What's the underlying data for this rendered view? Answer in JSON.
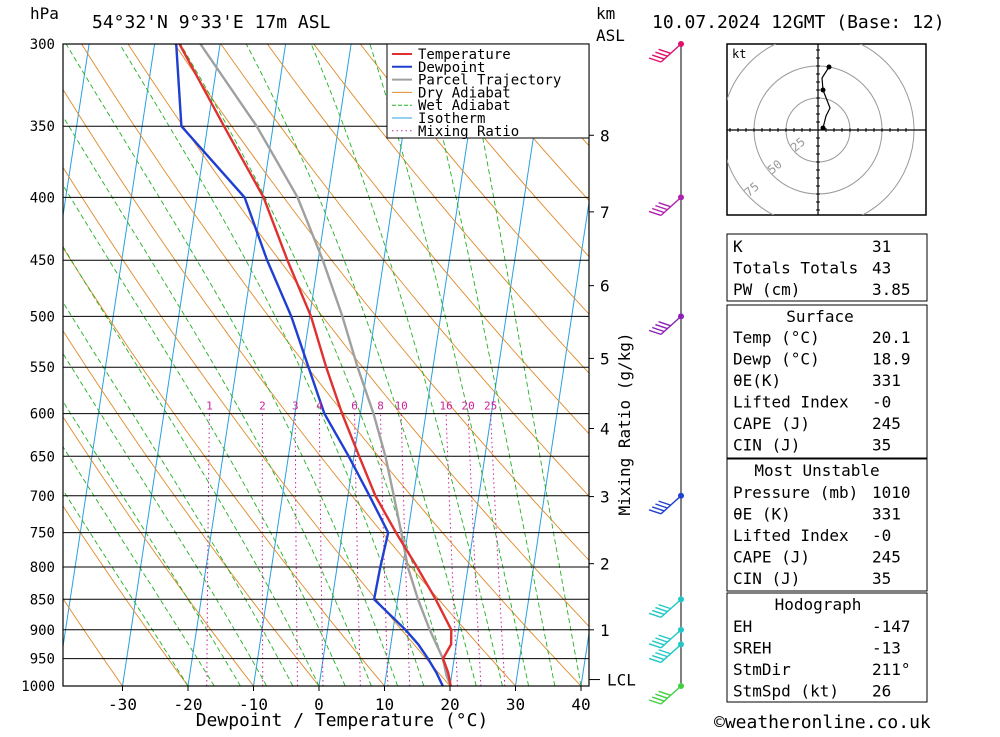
{
  "header": {
    "location": "54°32'N  9°33'E  17m  ASL",
    "pressure_unit": "hPa",
    "km_label": "km",
    "asl_label": "ASL",
    "datetime": "10.07.2024  12GMT  (Base: 12)"
  },
  "chart_data": {
    "type": "line",
    "xlabel": "Dewpoint / Temperature (°C)",
    "ylabel": "Mixing Ratio (g/kg)",
    "x_ticks": [
      -30,
      -20,
      -10,
      0,
      10,
      20,
      30,
      40
    ],
    "pressure_levels": [
      300,
      350,
      400,
      450,
      500,
      550,
      600,
      650,
      700,
      750,
      800,
      850,
      900,
      950,
      1000
    ],
    "km_ticks": [
      1,
      2,
      3,
      4,
      5,
      6,
      7,
      8
    ],
    "lcl_label": "LCL",
    "mixing_ratio_labels": [
      "1",
      "2",
      "3",
      "4",
      "6",
      "8",
      "10",
      "16",
      "20",
      "25"
    ],
    "legend": [
      {
        "name": "Temperature",
        "color": "#e03030"
      },
      {
        "name": "Dewpoint",
        "color": "#1f3fd0"
      },
      {
        "name": "Parcel Trajectory",
        "color": "#a0a0a0"
      },
      {
        "name": "Dry Adiabat",
        "color": "#e08a2a"
      },
      {
        "name": "Wet Adiabat",
        "color": "#22b022"
      },
      {
        "name": "Isotherm",
        "color": "#2aa0e0"
      },
      {
        "name": "Mixing Ratio",
        "color": "#cc2299"
      }
    ],
    "series": [
      {
        "name": "Temperature",
        "points": [
          [
            1000,
            20.1
          ],
          [
            975,
            19.4
          ],
          [
            950,
            18.3
          ],
          [
            925,
            19.2
          ],
          [
            900,
            18.9
          ],
          [
            850,
            15.8
          ],
          [
            800,
            12.2
          ],
          [
            750,
            8.2
          ],
          [
            700,
            4.2
          ],
          [
            650,
            0.8
          ],
          [
            600,
            -2.8
          ],
          [
            550,
            -6.3
          ],
          [
            500,
            -9.8
          ],
          [
            450,
            -14.7
          ],
          [
            400,
            -19.8
          ],
          [
            350,
            -27.5
          ],
          [
            300,
            -36.2
          ]
        ]
      },
      {
        "name": "Dewpoint",
        "points": [
          [
            1000,
            18.9
          ],
          [
            975,
            17.6
          ],
          [
            950,
            16.0
          ],
          [
            925,
            14.2
          ],
          [
            900,
            11.9
          ],
          [
            850,
            6.4
          ],
          [
            800,
            6.6
          ],
          [
            750,
            7.0
          ],
          [
            700,
            3.3
          ],
          [
            650,
            -0.8
          ],
          [
            600,
            -5.5
          ],
          [
            550,
            -9.0
          ],
          [
            500,
            -12.8
          ],
          [
            450,
            -17.8
          ],
          [
            400,
            -22.7
          ],
          [
            350,
            -34.0
          ],
          [
            300,
            -36.7
          ]
        ]
      },
      {
        "name": "Parcel Trajectory",
        "points": [
          [
            1000,
            20.1
          ],
          [
            980,
            19.2
          ],
          [
            950,
            18.3
          ],
          [
            900,
            15.6
          ],
          [
            850,
            13.1
          ],
          [
            800,
            10.8
          ],
          [
            750,
            9.0
          ],
          [
            700,
            7.0
          ],
          [
            650,
            4.8
          ],
          [
            600,
            2.0
          ],
          [
            550,
            -1.5
          ],
          [
            500,
            -5.0
          ],
          [
            450,
            -9.3
          ],
          [
            400,
            -14.6
          ],
          [
            350,
            -22.5
          ],
          [
            300,
            -33.0
          ]
        ]
      }
    ],
    "wind_barbs": [
      {
        "p": 300,
        "color": "#e0106e"
      },
      {
        "p": 400,
        "color": "#b020b0"
      },
      {
        "p": 500,
        "color": "#8a20b8"
      },
      {
        "p": 700,
        "color": "#2040d0"
      },
      {
        "p": 850,
        "color": "#20c8c8"
      },
      {
        "p": 900,
        "color": "#20c8c8"
      },
      {
        "p": 925,
        "color": "#20c8c8"
      },
      {
        "p": 1000,
        "color": "#40d040"
      }
    ]
  },
  "hodograph": {
    "unit": "kt",
    "ring_labels": [
      "25",
      "50",
      "75"
    ],
    "points": [
      [
        0.05,
        0.02
      ],
      [
        0.08,
        0.14
      ],
      [
        0.12,
        0.22
      ],
      [
        0.05,
        0.4
      ],
      [
        0.04,
        0.52
      ],
      [
        0.11,
        0.63
      ]
    ]
  },
  "indices": {
    "top": [
      {
        "label": "K",
        "value": "31"
      },
      {
        "label": "Totals Totals",
        "value": "43"
      },
      {
        "label": "PW (cm)",
        "value": "3.85"
      }
    ],
    "surface": {
      "title": "Surface",
      "rows": [
        {
          "label": "Temp (°C)",
          "value": "20.1"
        },
        {
          "label": "Dewp (°C)",
          "value": "18.9"
        },
        {
          "label": "θE(K)",
          "value": "331"
        },
        {
          "label": "Lifted Index",
          "value": "-0"
        },
        {
          "label": "CAPE (J)",
          "value": "245"
        },
        {
          "label": "CIN (J)",
          "value": "35"
        }
      ]
    },
    "most_unstable": {
      "title": "Most Unstable",
      "rows": [
        {
          "label": "Pressure (mb)",
          "value": "1010"
        },
        {
          "label": "θE (K)",
          "value": "331"
        },
        {
          "label": "Lifted Index",
          "value": "-0"
        },
        {
          "label": "CAPE (J)",
          "value": "245"
        },
        {
          "label": "CIN (J)",
          "value": "35"
        }
      ]
    },
    "hodograph": {
      "title": "Hodograph",
      "rows": [
        {
          "label": "EH",
          "value": "-147"
        },
        {
          "label": "SREH",
          "value": "-13"
        },
        {
          "label": "StmDir",
          "value": "211°"
        },
        {
          "label": "StmSpd (kt)",
          "value": "26"
        }
      ]
    }
  },
  "footer": {
    "copyright": "©weatheronline.co.uk"
  }
}
